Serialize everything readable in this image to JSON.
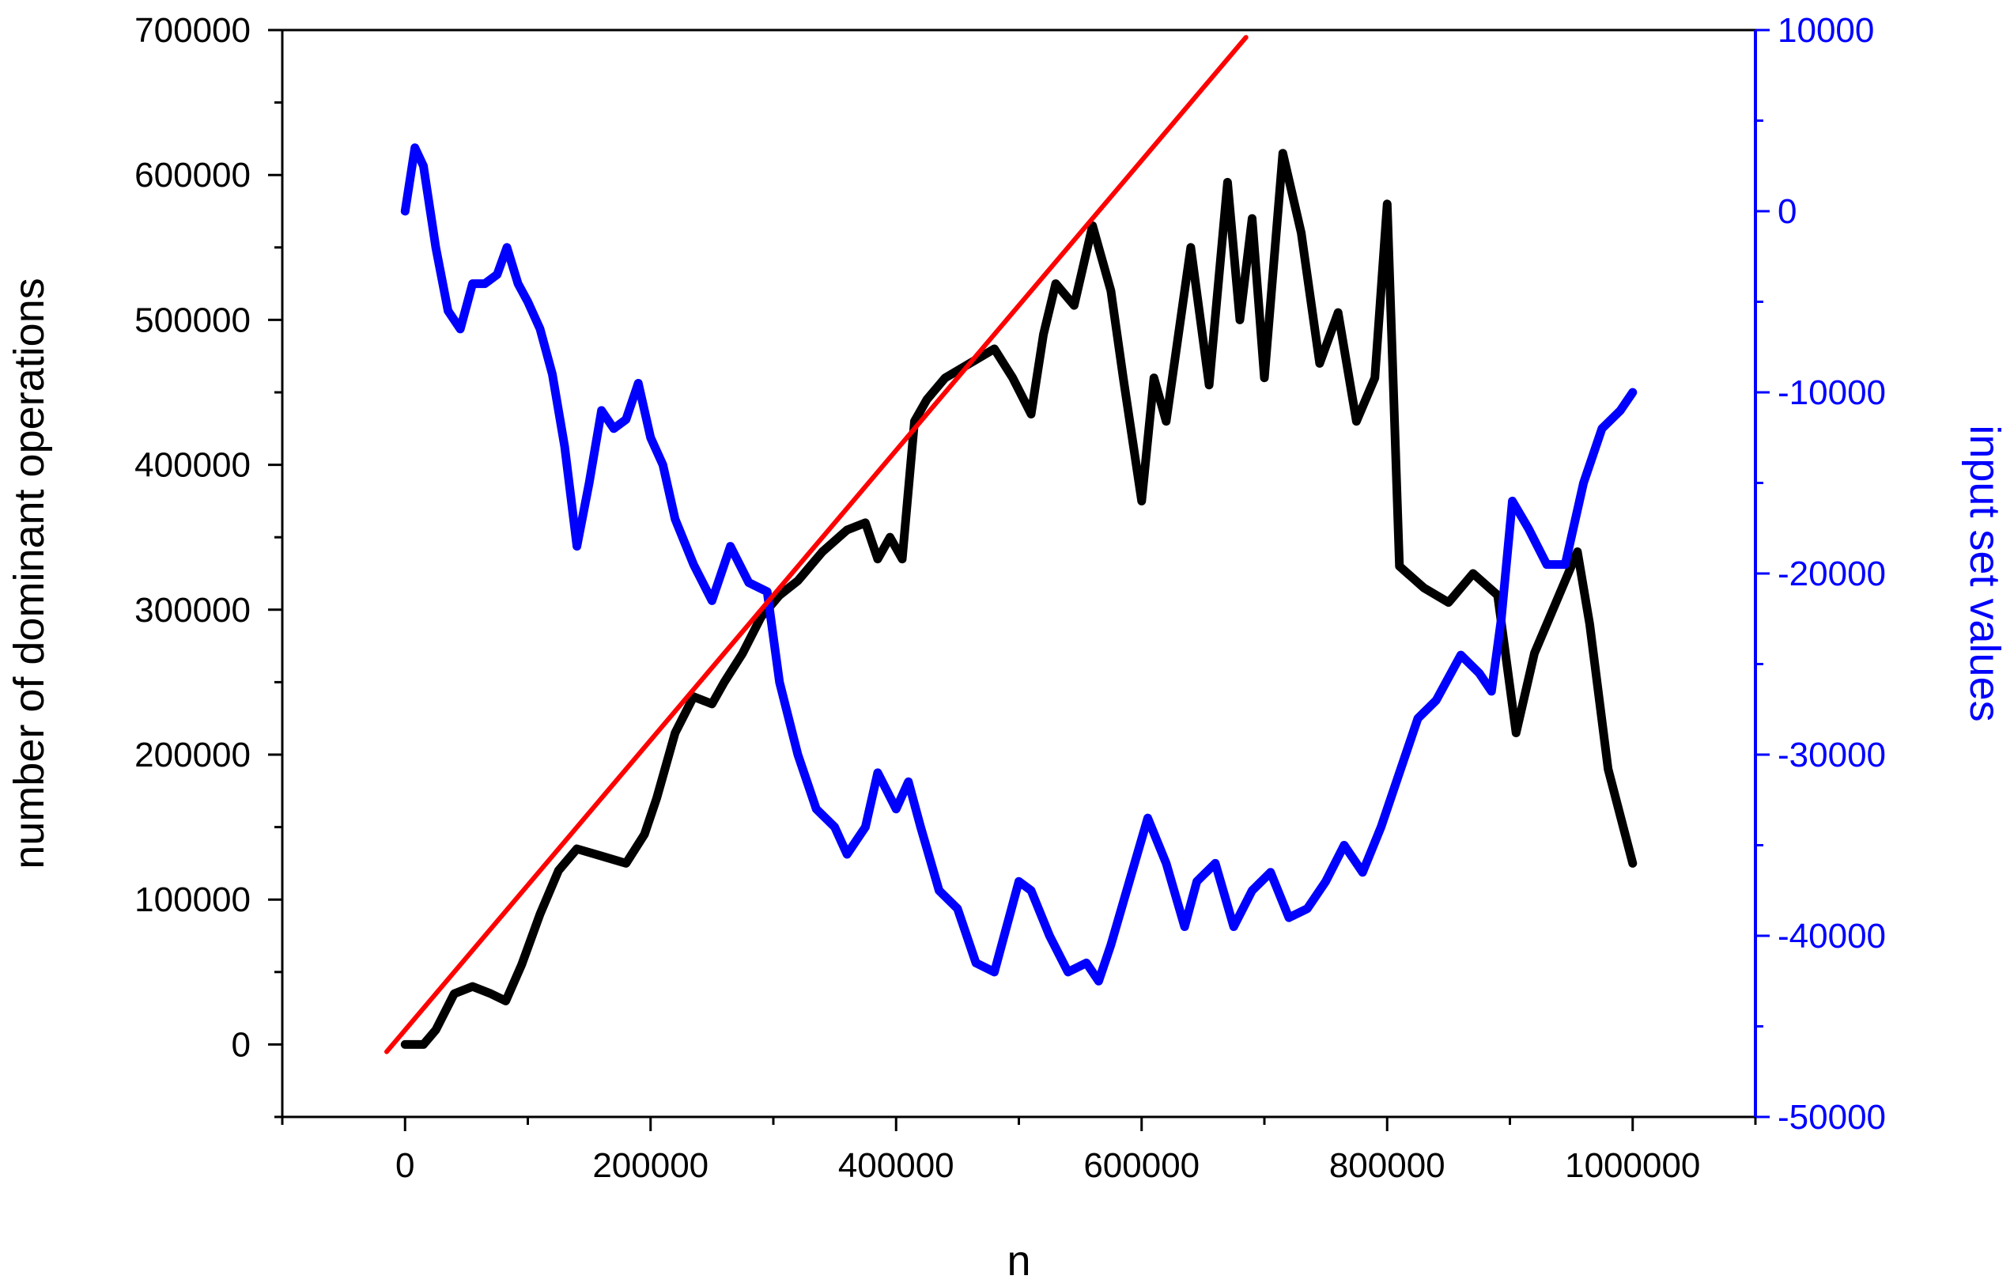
{
  "chart_data": {
    "type": "line",
    "xlabel": "n",
    "ylabel_left": "number of dominant operations",
    "ylabel_right": "input set values",
    "xlim": [
      -100000,
      1100000
    ],
    "ylim_left": [
      -50000,
      700000
    ],
    "ylim_right": [
      -50000,
      10000
    ],
    "grid": false,
    "legend": "none",
    "x_ticks": [
      0,
      200000,
      400000,
      600000,
      800000,
      1000000
    ],
    "y_left_ticks": [
      0,
      100000,
      200000,
      300000,
      400000,
      500000,
      600000,
      700000
    ],
    "y_right_ticks": [
      -50000,
      -40000,
      -30000,
      -20000,
      -10000,
      0,
      10000
    ],
    "colors": {
      "left_axis": "#000000",
      "right_axis": "#0000ff",
      "series_operations": "#000000",
      "series_input": "#0000ff",
      "series_linear": "#ff0000"
    },
    "series": [
      {
        "axis": "left",
        "color": "#000000",
        "x": [
          0,
          15000,
          25000,
          40000,
          55000,
          70000,
          82000,
          95000,
          110000,
          125000,
          140000,
          160000,
          180000,
          195000,
          205000,
          220000,
          235000,
          250000,
          260000,
          275000,
          290000,
          305000,
          320000,
          340000,
          360000,
          375000,
          385000,
          395000,
          405000,
          415000,
          425000,
          440000,
          460000,
          480000,
          495000,
          510000,
          520000,
          530000,
          545000,
          560000,
          575000,
          585000,
          600000,
          610000,
          620000,
          640000,
          655000,
          670000,
          680000,
          690000,
          700000,
          715000,
          730000,
          745000,
          760000,
          775000,
          790000,
          800000,
          810000,
          830000,
          850000,
          870000,
          890000,
          905000,
          920000,
          940000,
          955000,
          965000,
          980000,
          1000000
        ],
        "y": [
          0,
          0,
          10000,
          35000,
          40000,
          35000,
          30000,
          55000,
          90000,
          120000,
          135000,
          130000,
          125000,
          145000,
          170000,
          215000,
          240000,
          235000,
          250000,
          270000,
          295000,
          310000,
          320000,
          340000,
          355000,
          360000,
          335000,
          350000,
          335000,
          430000,
          445000,
          460000,
          470000,
          480000,
          460000,
          435000,
          490000,
          525000,
          510000,
          565000,
          520000,
          460000,
          375000,
          460000,
          430000,
          550000,
          455000,
          595000,
          500000,
          570000,
          460000,
          615000,
          560000,
          470000,
          505000,
          430000,
          460000,
          580000,
          330000,
          315000,
          305000,
          325000,
          310000,
          215000,
          270000,
          310000,
          340000,
          290000,
          190000,
          125000
        ]
      },
      {
        "axis": "right",
        "color": "#0000ff",
        "x": [
          0,
          8000,
          15000,
          25000,
          35000,
          45000,
          55000,
          65000,
          75000,
          83000,
          92000,
          100000,
          110000,
          120000,
          130000,
          140000,
          150000,
          160000,
          170000,
          180000,
          190000,
          200000,
          210000,
          220000,
          235000,
          250000,
          265000,
          280000,
          295000,
          305000,
          320000,
          335000,
          350000,
          360000,
          375000,
          385000,
          400000,
          410000,
          420000,
          435000,
          450000,
          465000,
          480000,
          500000,
          510000,
          525000,
          540000,
          555000,
          565000,
          575000,
          590000,
          605000,
          620000,
          635000,
          645000,
          660000,
          675000,
          690000,
          705000,
          720000,
          735000,
          750000,
          765000,
          780000,
          795000,
          810000,
          825000,
          840000,
          860000,
          875000,
          885000,
          893000,
          902000,
          915000,
          930000,
          945000,
          960000,
          975000,
          990000,
          1000000
        ],
        "y": [
          0,
          3500,
          2500,
          -2000,
          -5500,
          -6500,
          -4000,
          -4000,
          -3500,
          -2000,
          -4000,
          -5000,
          -6500,
          -9000,
          -13000,
          -18500,
          -15000,
          -11000,
          -12000,
          -11500,
          -9500,
          -12500,
          -14000,
          -17000,
          -19500,
          -21500,
          -18500,
          -20500,
          -21000,
          -26000,
          -30000,
          -33000,
          -34000,
          -35500,
          -34000,
          -31000,
          -33000,
          -31500,
          -34000,
          -37500,
          -38500,
          -41500,
          -42000,
          -37000,
          -37500,
          -40000,
          -42000,
          -41500,
          -42500,
          -40500,
          -37000,
          -33500,
          -36000,
          -39500,
          -37000,
          -36000,
          -39500,
          -37500,
          -36500,
          -39000,
          -38500,
          -37000,
          -35000,
          -36500,
          -34000,
          -31000,
          -28000,
          -27000,
          -24500,
          -25500,
          -26500,
          -22500,
          -16000,
          -17500,
          -19500,
          -19500,
          -15000,
          -12000,
          -11000,
          -10000
        ]
      },
      {
        "axis": "left",
        "color": "#ff0000",
        "x": [
          -15000,
          685000
        ],
        "y": [
          -5000,
          695000
        ]
      }
    ]
  }
}
